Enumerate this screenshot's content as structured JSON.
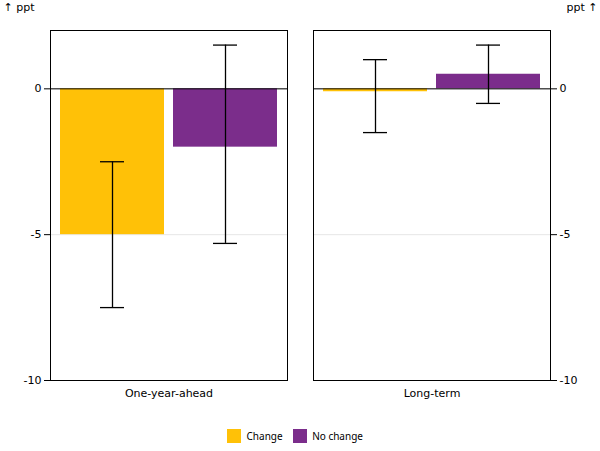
{
  "chart_data": {
    "type": "bar",
    "categories": [
      "One-year-ahead",
      "Long-term"
    ],
    "series": [
      {
        "name": "Change",
        "color": "#FFC107",
        "values": [
          -5.0,
          -0.1
        ],
        "error_lower": [
          -7.5,
          -1.5
        ],
        "error_upper": [
          -2.5,
          1.0
        ]
      },
      {
        "name": "No change",
        "color": "#7B2D8B",
        "values": [
          -2.0,
          0.5
        ],
        "error_lower": [
          -5.3,
          -0.5
        ],
        "error_upper": [
          1.5,
          1.5
        ]
      }
    ],
    "ylabel": "ppt",
    "y2label": "ppt",
    "ylim": [
      -10,
      2
    ],
    "yticks": [
      -10,
      -5,
      0
    ],
    "y2lim": [
      -10,
      2
    ],
    "y2ticks": [
      -10,
      -5,
      0
    ],
    "grid": true,
    "legend": "bottom"
  }
}
